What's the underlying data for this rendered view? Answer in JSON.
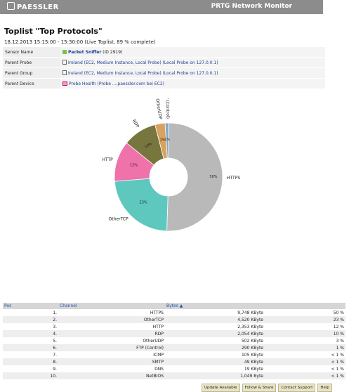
{
  "header": {
    "logo": "PAESSLER",
    "app_title": "PRTG Network Monitor"
  },
  "page": {
    "title": "Toplist \"Top Protocols\"",
    "subtitle": "18.12.2013 15:15:00 - 15:30:00 (Live Toplist, 89 % complete)"
  },
  "info": [
    {
      "label": "Sensor Name",
      "value": "Packet Sniffer",
      "extra": "(ID 2919)"
    },
    {
      "label": "Parent Probe",
      "value": "Ireland (EC2, Medium Instance, Local Probe) (Local Probe on 127.0.0.1)"
    },
    {
      "label": "Parent Group",
      "value": "Ireland (EC2, Medium Instance, Local Probe) (Local Probe on 127.0.0.1)"
    },
    {
      "label": "Parent Device",
      "value": "Probe Health (Probe ....paessler.com bei EC2)"
    }
  ],
  "chart_data": {
    "type": "pie",
    "categories": [
      "HTTPS",
      "OtherTCP",
      "HTTP",
      "RDP",
      "OtherUDP",
      "FTP (Control)"
    ],
    "values": [
      50,
      23,
      12,
      10,
      3,
      1
    ],
    "labels": [
      "50%",
      "23%",
      "12%",
      "10%",
      "3%",
      "1%"
    ],
    "colors": [
      "#b9b9b9",
      "#5ec8bf",
      "#ef72aa",
      "#76763e",
      "#d9a25f",
      "#7fa9c9"
    ]
  },
  "table": {
    "headers": {
      "pos": "Pos",
      "channel": "Channel",
      "bytes": "Bytes ▲"
    },
    "rows": [
      {
        "pos": "1.",
        "channel": "HTTPS",
        "bytes": "9,748 KByte",
        "percent": "50 %"
      },
      {
        "pos": "2.",
        "channel": "OtherTCP",
        "bytes": "4,520 KByte",
        "percent": "23 %"
      },
      {
        "pos": "3.",
        "channel": "HTTP",
        "bytes": "2,353 KByte",
        "percent": "12 %"
      },
      {
        "pos": "4.",
        "channel": "RDP",
        "bytes": "2,054 KByte",
        "percent": "10 %"
      },
      {
        "pos": "5.",
        "channel": "OtherUDP",
        "bytes": "502 KByte",
        "percent": "3 %"
      },
      {
        "pos": "6.",
        "channel": "FTP (Control)",
        "bytes": "290 KByte",
        "percent": "1 %"
      },
      {
        "pos": "7.",
        "channel": "ICMP",
        "bytes": "105 KByte",
        "percent": "< 1 %"
      },
      {
        "pos": "8.",
        "channel": "SMTP",
        "bytes": "49 KByte",
        "percent": "< 1 %"
      },
      {
        "pos": "9.",
        "channel": "DNS",
        "bytes": "19 KByte",
        "percent": "< 1 %"
      },
      {
        "pos": "10.",
        "channel": "NetBIOS",
        "bytes": "1,049 Byte",
        "percent": "< 1 %"
      }
    ]
  },
  "footer": {
    "update": "Update Available",
    "follow": "Follow & Share",
    "contact": "Contact Support",
    "help": "Help"
  }
}
